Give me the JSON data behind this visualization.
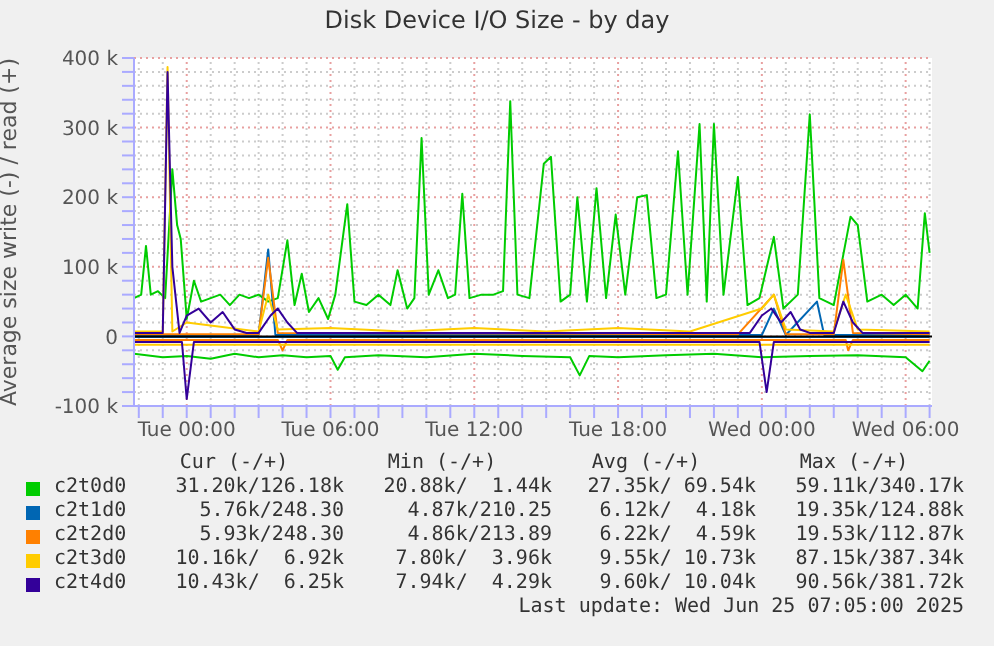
{
  "chart_data": {
    "type": "line",
    "title": "Disk Device I/O Size - by day",
    "ylabel": "Average size write (-) / read (+)",
    "xlim": [
      "2025-06-23T21:48",
      "2025-06-25T07:06"
    ],
    "xticks": [
      {
        "value": "2025-06-23T22:00",
        "label": null
      },
      {
        "value": "2025-06-23T23:00",
        "label": null
      },
      {
        "value": "2025-06-24T00:00",
        "label": "Tue 00:00"
      },
      {
        "value": "2025-06-24T01:00",
        "label": null
      },
      {
        "value": "2025-06-24T02:00",
        "label": null
      },
      {
        "value": "2025-06-24T03:00",
        "label": null
      },
      {
        "value": "2025-06-24T04:00",
        "label": null
      },
      {
        "value": "2025-06-24T05:00",
        "label": null
      },
      {
        "value": "2025-06-24T06:00",
        "label": "Tue 06:00"
      },
      {
        "value": "2025-06-24T07:00",
        "label": null
      },
      {
        "value": "2025-06-24T08:00",
        "label": null
      },
      {
        "value": "2025-06-24T09:00",
        "label": null
      },
      {
        "value": "2025-06-24T10:00",
        "label": null
      },
      {
        "value": "2025-06-24T11:00",
        "label": null
      },
      {
        "value": "2025-06-24T12:00",
        "label": "Tue 12:00"
      },
      {
        "value": "2025-06-24T13:00",
        "label": null
      },
      {
        "value": "2025-06-24T14:00",
        "label": null
      },
      {
        "value": "2025-06-24T15:00",
        "label": null
      },
      {
        "value": "2025-06-24T16:00",
        "label": null
      },
      {
        "value": "2025-06-24T17:00",
        "label": null
      },
      {
        "value": "2025-06-24T18:00",
        "label": "Tue 18:00"
      },
      {
        "value": "2025-06-24T19:00",
        "label": null
      },
      {
        "value": "2025-06-24T20:00",
        "label": null
      },
      {
        "value": "2025-06-24T21:00",
        "label": null
      },
      {
        "value": "2025-06-24T22:00",
        "label": null
      },
      {
        "value": "2025-06-24T23:00",
        "label": null
      },
      {
        "value": "2025-06-25T00:00",
        "label": "Wed 00:00"
      },
      {
        "value": "2025-06-25T01:00",
        "label": null
      },
      {
        "value": "2025-06-25T02:00",
        "label": null
      },
      {
        "value": "2025-06-25T03:00",
        "label": null
      },
      {
        "value": "2025-06-25T04:00",
        "label": null
      },
      {
        "value": "2025-06-25T05:00",
        "label": null
      },
      {
        "value": "2025-06-25T06:00",
        "label": "Wed 06:00"
      },
      {
        "value": "2025-06-25T07:00",
        "label": null
      }
    ],
    "ylim": [
      -100000,
      400000
    ],
    "yticks": [
      {
        "value": -100000,
        "label": "-100 k"
      },
      {
        "value": -80000,
        "label": null
      },
      {
        "value": -60000,
        "label": null
      },
      {
        "value": -40000,
        "label": null
      },
      {
        "value": -20000,
        "label": null
      },
      {
        "value": 0,
        "label": "0"
      },
      {
        "value": 20000,
        "label": null
      },
      {
        "value": 40000,
        "label": null
      },
      {
        "value": 60000,
        "label": null
      },
      {
        "value": 80000,
        "label": null
      },
      {
        "value": 100000,
        "label": "100 k"
      },
      {
        "value": 120000,
        "label": null
      },
      {
        "value": 140000,
        "label": null
      },
      {
        "value": 160000,
        "label": null
      },
      {
        "value": 180000,
        "label": null
      },
      {
        "value": 200000,
        "label": "200 k"
      },
      {
        "value": 220000,
        "label": null
      },
      {
        "value": 240000,
        "label": null
      },
      {
        "value": 260000,
        "label": null
      },
      {
        "value": 280000,
        "label": null
      },
      {
        "value": 300000,
        "label": "300 k"
      },
      {
        "value": 320000,
        "label": null
      },
      {
        "value": 340000,
        "label": null
      },
      {
        "value": 360000,
        "label": null
      },
      {
        "value": 380000,
        "label": null
      },
      {
        "value": 400000,
        "label": "400 k"
      }
    ],
    "grid": true,
    "legend": "bottom",
    "ref_lines": [
      {
        "axis": "y",
        "value": 0,
        "color": "#000000"
      }
    ],
    "series": [
      {
        "name": "c2t0d0",
        "color": "#00cc00",
        "x": [
          "2025-06-23T21:48",
          "2025-06-23T22:06",
          "2025-06-23T22:18",
          "2025-06-23T22:30",
          "2025-06-23T22:48",
          "2025-06-23T23:06",
          "2025-06-23T23:24",
          "2025-06-23T23:36",
          "2025-06-23T23:45",
          "2025-06-24T00:00",
          "2025-06-24T00:18",
          "2025-06-24T00:36",
          "2025-06-24T01:00",
          "2025-06-24T01:24",
          "2025-06-24T01:48",
          "2025-06-24T02:12",
          "2025-06-24T02:36",
          "2025-06-24T03:00",
          "2025-06-24T03:24",
          "2025-06-24T03:48",
          "2025-06-24T04:12",
          "2025-06-24T04:30",
          "2025-06-24T04:48",
          "2025-06-24T05:06",
          "2025-06-24T05:30",
          "2025-06-24T05:54",
          "2025-06-24T06:12",
          "2025-06-24T06:42",
          "2025-06-24T07:00",
          "2025-06-24T07:30",
          "2025-06-24T08:00",
          "2025-06-24T08:30",
          "2025-06-24T08:48",
          "2025-06-24T09:12",
          "2025-06-24T09:30",
          "2025-06-24T09:48",
          "2025-06-24T10:06",
          "2025-06-24T10:30",
          "2025-06-24T10:54",
          "2025-06-24T11:12",
          "2025-06-24T11:30",
          "2025-06-24T11:48",
          "2025-06-24T12:18",
          "2025-06-24T12:48",
          "2025-06-24T13:12",
          "2025-06-24T13:30",
          "2025-06-24T13:48",
          "2025-06-24T14:18",
          "2025-06-24T14:54",
          "2025-06-24T15:12",
          "2025-06-24T15:36",
          "2025-06-24T16:00",
          "2025-06-24T16:18",
          "2025-06-24T16:42",
          "2025-06-24T17:06",
          "2025-06-24T17:30",
          "2025-06-24T17:54",
          "2025-06-24T18:18",
          "2025-06-24T18:48",
          "2025-06-24T19:12",
          "2025-06-24T19:36",
          "2025-06-24T20:00",
          "2025-06-24T20:30",
          "2025-06-24T20:54",
          "2025-06-24T21:24",
          "2025-06-24T21:42",
          "2025-06-24T22:00",
          "2025-06-24T22:24",
          "2025-06-24T23:00",
          "2025-06-24T23:24",
          "2025-06-24T23:54",
          "2025-06-25T00:30",
          "2025-06-25T00:54",
          "2025-06-25T01:30",
          "2025-06-25T02:00",
          "2025-06-25T02:24",
          "2025-06-25T03:00",
          "2025-06-25T03:42",
          "2025-06-25T04:00",
          "2025-06-25T04:24",
          "2025-06-25T05:00",
          "2025-06-25T05:30",
          "2025-06-25T06:00",
          "2025-06-25T06:30",
          "2025-06-25T06:48",
          "2025-06-25T07:00"
        ],
        "values": [
          55000,
          60000,
          130000,
          60000,
          65000,
          55000,
          240000,
          160000,
          140000,
          25000,
          80000,
          50000,
          55000,
          60000,
          45000,
          60000,
          55000,
          60000,
          50000,
          55000,
          138000,
          45000,
          90000,
          35000,
          55000,
          25000,
          60000,
          190000,
          50000,
          45000,
          60000,
          45000,
          95000,
          40000,
          55000,
          285000,
          60000,
          95000,
          55000,
          60000,
          205000,
          55000,
          60000,
          60000,
          65000,
          338000,
          60000,
          55000,
          248000,
          258000,
          50000,
          60000,
          200000,
          50000,
          213000,
          55000,
          175000,
          60000,
          200000,
          203000,
          55000,
          60000,
          266000,
          60000,
          305000,
          50000,
          305000,
          60000,
          229000,
          45000,
          55000,
          143000,
          40000,
          60000,
          319000,
          55000,
          45000,
          172000,
          160000,
          50000,
          60000,
          45000,
          60000,
          40000,
          177000,
          120000
        ]
      },
      {
        "color": "#00cc00",
        "x": [
          "2025-06-23T21:48",
          "2025-06-23T23:00",
          "2025-06-24T00:00",
          "2025-06-24T01:00",
          "2025-06-24T02:00",
          "2025-06-24T03:00",
          "2025-06-24T04:00",
          "2025-06-24T05:00",
          "2025-06-24T06:00",
          "2025-06-24T06:18",
          "2025-06-24T06:36",
          "2025-06-24T08:00",
          "2025-06-24T10:00",
          "2025-06-24T12:00",
          "2025-06-24T14:00",
          "2025-06-24T16:00",
          "2025-06-24T16:24",
          "2025-06-24T16:48",
          "2025-06-24T18:00",
          "2025-06-24T20:00",
          "2025-06-24T22:00",
          "2025-06-25T00:00",
          "2025-06-25T02:00",
          "2025-06-25T04:00",
          "2025-06-25T06:00",
          "2025-06-25T06:42",
          "2025-06-25T07:00"
        ],
        "values": [
          -25000,
          -30000,
          -28000,
          -32000,
          -25000,
          -30000,
          -27000,
          -30000,
          -28000,
          -48000,
          -30000,
          -27000,
          -30000,
          -25000,
          -28000,
          -30000,
          -56000,
          -28000,
          -30000,
          -27000,
          -25000,
          -30000,
          -28000,
          -27000,
          -30000,
          -50000,
          -35000
        ]
      },
      {
        "name": "c2t1d0",
        "color": "#0066b3",
        "x": [
          "2025-06-23T21:48",
          "2025-06-24T03:00",
          "2025-06-24T03:24",
          "2025-06-24T03:42",
          "2025-06-25T00:00",
          "2025-06-25T00:30",
          "2025-06-25T01:00",
          "2025-06-25T02:18",
          "2025-06-25T02:36",
          "2025-06-25T07:00"
        ],
        "values": [
          2000,
          2000,
          125000,
          2000,
          2000,
          40000,
          2000,
          50000,
          2000,
          2000
        ]
      },
      {
        "color": "#0066b3",
        "x": [
          "2025-06-23T21:48",
          "2025-06-25T07:00"
        ],
        "values": [
          -1000,
          -1000
        ]
      },
      {
        "name": "c2t2d0",
        "color": "#ff8000",
        "x": [
          "2025-06-23T21:48",
          "2025-06-24T03:00",
          "2025-06-24T03:24",
          "2025-06-24T03:48",
          "2025-06-24T23:00",
          "2025-06-25T00:30",
          "2025-06-25T01:00",
          "2025-06-25T03:00",
          "2025-06-25T03:24",
          "2025-06-25T03:48",
          "2025-06-25T07:00"
        ],
        "values": [
          3000,
          3000,
          113000,
          5000,
          3000,
          60000,
          3000,
          3000,
          110000,
          5000,
          3000
        ]
      },
      {
        "color": "#ff8000",
        "x": [
          "2025-06-23T21:48",
          "2025-06-24T03:48",
          "2025-06-24T04:00",
          "2025-06-24T04:12",
          "2025-06-25T03:30",
          "2025-06-25T03:36",
          "2025-06-25T03:48",
          "2025-06-25T07:00"
        ],
        "values": [
          -5000,
          -5000,
          -20000,
          -5000,
          -5000,
          -20000,
          -5000,
          -5000
        ]
      },
      {
        "name": "c2t3d0",
        "color": "#ffcc00",
        "x": [
          "2025-06-23T21:48",
          "2025-06-23T23:00",
          "2025-06-23T23:12",
          "2025-06-23T23:24",
          "2025-06-24T00:00",
          "2025-06-24T03:00",
          "2025-06-24T03:24",
          "2025-06-24T03:48",
          "2025-06-24T06:00",
          "2025-06-24T09:00",
          "2025-06-24T12:00",
          "2025-06-24T15:00",
          "2025-06-24T18:00",
          "2025-06-24T21:00",
          "2025-06-25T00:00",
          "2025-06-25T00:30",
          "2025-06-25T01:00",
          "2025-06-25T03:00",
          "2025-06-25T03:30",
          "2025-06-25T04:00",
          "2025-06-25T07:00"
        ],
        "values": [
          7000,
          7000,
          387000,
          7000,
          20000,
          7000,
          60000,
          10000,
          12000,
          7000,
          12000,
          7000,
          12000,
          7000,
          40000,
          60000,
          10000,
          7000,
          60000,
          10000,
          7000
        ]
      },
      {
        "color": "#ffcc00",
        "x": [
          "2025-06-23T21:48",
          "2025-06-25T07:00"
        ],
        "values": [
          -12000,
          -12000
        ]
      },
      {
        "name": "c2t4d0",
        "color": "#330099",
        "x": [
          "2025-06-23T21:48",
          "2025-06-23T22:48",
          "2025-06-23T23:00",
          "2025-06-23T23:12",
          "2025-06-23T23:24",
          "2025-06-23T23:42",
          "2025-06-24T00:00",
          "2025-06-24T00:30",
          "2025-06-24T01:00",
          "2025-06-24T01:30",
          "2025-06-24T02:00",
          "2025-06-24T02:30",
          "2025-06-24T03:00",
          "2025-06-24T03:30",
          "2025-06-24T03:48",
          "2025-06-24T04:12",
          "2025-06-24T04:36",
          "2025-06-24T05:00",
          "2025-06-24T10:00",
          "2025-06-24T15:00",
          "2025-06-24T20:00",
          "2025-06-24T23:30",
          "2025-06-25T00:00",
          "2025-06-25T00:24",
          "2025-06-25T00:48",
          "2025-06-25T01:12",
          "2025-06-25T01:36",
          "2025-06-25T02:00",
          "2025-06-25T03:00",
          "2025-06-25T03:24",
          "2025-06-25T03:48",
          "2025-06-25T04:12",
          "2025-06-25T05:00",
          "2025-06-25T07:00"
        ],
        "values": [
          5000,
          5000,
          5000,
          380000,
          100000,
          5000,
          30000,
          40000,
          20000,
          35000,
          10000,
          5000,
          5000,
          30000,
          40000,
          20000,
          5000,
          5000,
          5000,
          5000,
          5000,
          5000,
          30000,
          40000,
          20000,
          35000,
          10000,
          5000,
          5000,
          50000,
          20000,
          5000,
          5000,
          5000
        ]
      },
      {
        "color": "#330099",
        "x": [
          "2025-06-23T21:48",
          "2025-06-23T23:48",
          "2025-06-24T00:00",
          "2025-06-24T00:18",
          "2025-06-24T23:54",
          "2025-06-25T00:12",
          "2025-06-25T00:30",
          "2025-06-25T07:00"
        ],
        "values": [
          -8000,
          -8000,
          -90000,
          -8000,
          -8000,
          -80000,
          -8000,
          -8000
        ]
      }
    ],
    "annotations": [
      "Cur (-/+)",
      "Min (-/+)",
      "Avg (-/+)",
      "Max (-/+)",
      "31.20k/126.18k",
      "20.88k/  1.44k",
      "27.35k/ 69.54k",
      "59.11k/340.17k",
      "5.76k/248.30",
      "4.87k/210.25",
      "6.12k/  4.18k",
      "19.35k/124.88k",
      "5.93k/248.30",
      "4.86k/213.89",
      "6.22k/  4.59k",
      "19.53k/112.87k",
      "10.16k/  6.92k",
      "7.80k/  3.96k",
      "9.55k/ 10.73k",
      "87.15k/387.34k",
      "10.43k/  6.25k",
      "7.94k/  4.29k",
      "9.60k/ 10.04k",
      "90.56k/381.72k",
      "Last update: Wed Jun 25 07:05:00 2025"
    ]
  }
}
